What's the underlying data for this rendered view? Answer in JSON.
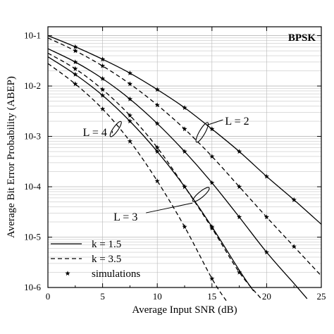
{
  "chart_data": {
    "type": "line",
    "title": "BPSK",
    "xlabel": "Average Input SNR (dB)",
    "ylabel": "Average Bit Error Probability (ABEP)",
    "xlim": [
      0,
      25
    ],
    "ylim": [
      1e-06,
      0.15
    ],
    "yscale": "log",
    "grid": true,
    "x_ticks": [
      0,
      5,
      10,
      15,
      20,
      25
    ],
    "y_ticks": [
      {
        "value": 1e-06,
        "label": "10-6"
      },
      {
        "value": 1e-05,
        "label": "10-5"
      },
      {
        "value": 0.0001,
        "label": "10-4"
      },
      {
        "value": 0.001,
        "label": "10-3"
      },
      {
        "value": 0.01,
        "label": "10-2"
      },
      {
        "value": 0.1,
        "label": "10-1"
      }
    ],
    "annotations": [
      {
        "text": "L = 2",
        "x": 16.2,
        "y": 0.002
      },
      {
        "text": "L = 4",
        "x": 3.2,
        "y": 0.0012
      },
      {
        "text": "L = 3",
        "x": 6.0,
        "y": 2.5e-05
      }
    ],
    "legend": {
      "position": "bottom-left",
      "entries": [
        {
          "label": "k = 1.5",
          "style": "solid"
        },
        {
          "label": "k = 3.5",
          "style": "dashed"
        },
        {
          "label": "simulations",
          "style": "star"
        }
      ]
    },
    "series": [
      {
        "style": "solid",
        "x": [
          0,
          2.5,
          5,
          7.5,
          10,
          12.5,
          15,
          17.5,
          20,
          22.5,
          25
        ],
        "values": [
          0.1,
          0.06,
          0.034,
          0.018,
          0.0085,
          0.0037,
          0.0014,
          0.0005,
          0.00016,
          5.5e-05,
          1.8e-05
        ]
      },
      {
        "style": "dashed",
        "x": [
          0,
          2.5,
          5,
          7.5,
          10,
          12.5,
          15,
          17.5,
          20,
          22.5,
          25
        ],
        "values": [
          0.09,
          0.05,
          0.025,
          0.011,
          0.0042,
          0.0014,
          0.0004,
          0.0001,
          2.5e-05,
          6.5e-06,
          1.7e-06
        ]
      },
      {
        "style": "solid",
        "x": [
          0,
          2.5,
          5,
          7.5,
          10,
          12.5,
          15,
          17.5,
          20,
          22.5,
          23.7
        ],
        "values": [
          0.055,
          0.03,
          0.014,
          0.0055,
          0.0018,
          0.0005,
          0.00012,
          2.5e-05,
          5e-06,
          1.2e-06,
          6e-07
        ]
      },
      {
        "style": "dashed",
        "x": [
          0,
          2.5,
          5,
          7.5,
          10,
          12.5,
          15,
          17.5,
          19.5
        ],
        "values": [
          0.045,
          0.022,
          0.0085,
          0.0026,
          0.0006,
          0.0001,
          1.5e-05,
          2e-06,
          6e-07
        ]
      },
      {
        "style": "solid",
        "x": [
          0,
          2.5,
          5,
          7.5,
          10,
          12.5,
          15,
          17.5,
          18.8
        ],
        "values": [
          0.038,
          0.017,
          0.0065,
          0.002,
          0.0005,
          0.0001,
          1.6e-05,
          2.2e-06,
          8.5e-07
        ]
      },
      {
        "style": "dashed",
        "x": [
          0,
          2.5,
          5,
          7.5,
          10,
          12.5,
          15,
          16.3
        ],
        "values": [
          0.028,
          0.011,
          0.0035,
          0.0008,
          0.00013,
          1.6e-05,
          1.5e-06,
          5.5e-07
        ]
      }
    ],
    "simulations": [
      {
        "x": [
          2.5,
          5,
          7.5,
          10,
          12.5,
          15,
          17.5,
          20,
          22.5
        ],
        "values": [
          0.06,
          0.034,
          0.018,
          0.0085,
          0.0037,
          0.0014,
          0.0005,
          0.00016,
          5.5e-05
        ]
      },
      {
        "x": [
          2.5,
          5,
          7.5,
          10,
          12.5,
          15,
          17.5,
          20,
          22.5
        ],
        "values": [
          0.05,
          0.025,
          0.011,
          0.0042,
          0.0014,
          0.0004,
          0.0001,
          2.5e-05,
          6.5e-06
        ]
      },
      {
        "x": [
          2.5,
          5,
          7.5,
          10,
          12.5,
          15,
          17.5,
          20
        ],
        "values": [
          0.03,
          0.014,
          0.0055,
          0.0018,
          0.0005,
          0.00012,
          2.5e-05,
          5e-06
        ]
      },
      {
        "x": [
          2.5,
          5,
          7.5,
          10,
          12.5,
          15,
          17.5
        ],
        "values": [
          0.022,
          0.0085,
          0.0026,
          0.0006,
          0.0001,
          1.5e-05,
          2e-06
        ]
      },
      {
        "x": [
          2.5,
          5,
          7.5,
          10,
          12.5,
          15
        ],
        "values": [
          0.017,
          0.0065,
          0.002,
          0.0005,
          0.0001,
          1.6e-05
        ]
      },
      {
        "x": [
          2.5,
          5,
          7.5,
          10,
          12.5,
          15
        ],
        "values": [
          0.011,
          0.0035,
          0.0008,
          0.00013,
          1.6e-05,
          1.5e-06
        ]
      }
    ],
    "colors": {
      "line": "#000000",
      "grid": "#b8b8b8",
      "background": "#ffffff"
    }
  }
}
